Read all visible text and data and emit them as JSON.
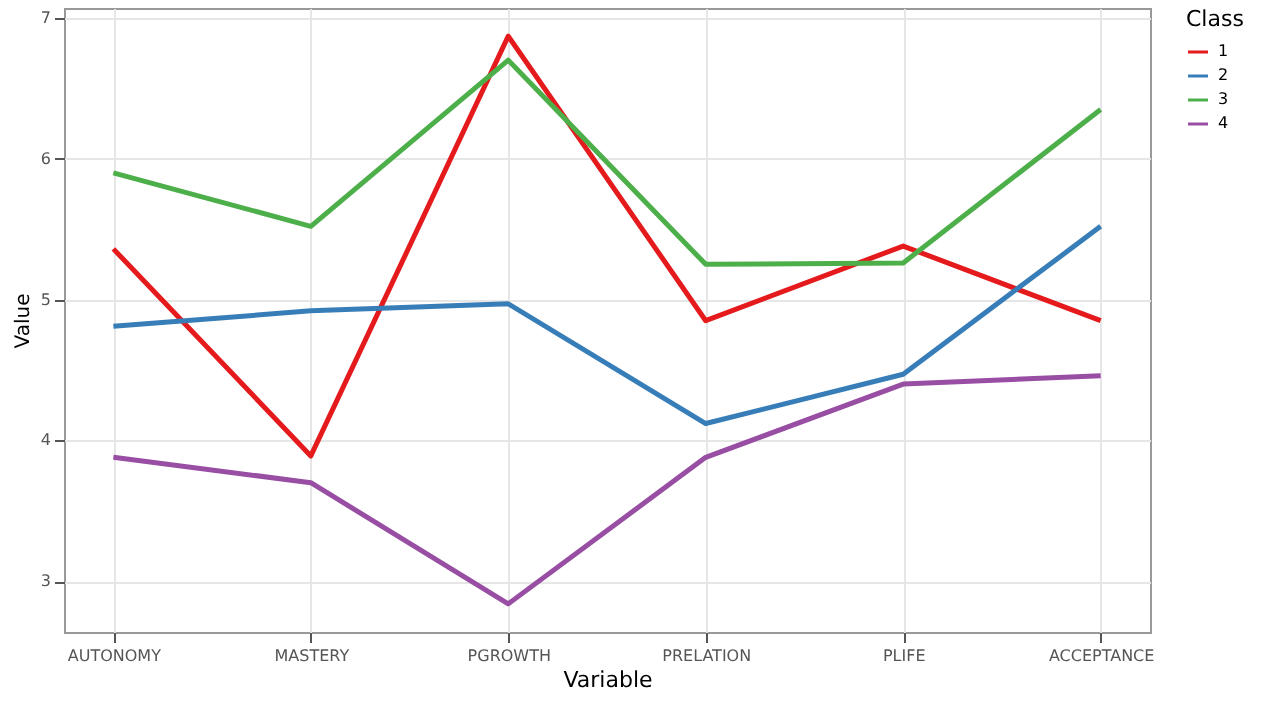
{
  "chart_data": {
    "type": "line",
    "xlabel": "Variable",
    "ylabel": "Value",
    "legend_title": "Class",
    "categories": [
      "AUTONOMY",
      "MASTERY",
      "PGROWTH",
      "PRELATION",
      "PLIFE",
      "ACCEPTANCE"
    ],
    "series": [
      {
        "name": "1",
        "color": "#e41a1c",
        "values": [
          5.36,
          3.89,
          6.87,
          4.85,
          5.38,
          4.85
        ]
      },
      {
        "name": "2",
        "color": "#377eb8",
        "values": [
          4.81,
          4.92,
          4.97,
          4.12,
          4.47,
          5.52
        ]
      },
      {
        "name": "3",
        "color": "#4daf4a",
        "values": [
          5.9,
          5.52,
          6.7,
          5.25,
          5.26,
          6.35
        ]
      },
      {
        "name": "4",
        "color": "#984ea3",
        "values": [
          3.88,
          3.7,
          2.84,
          3.88,
          4.4,
          4.46
        ]
      }
    ],
    "ylim": [
      2.64,
      7.07
    ],
    "yticks": [
      3,
      4,
      5,
      6,
      7
    ],
    "grid": true,
    "legend": "right"
  }
}
